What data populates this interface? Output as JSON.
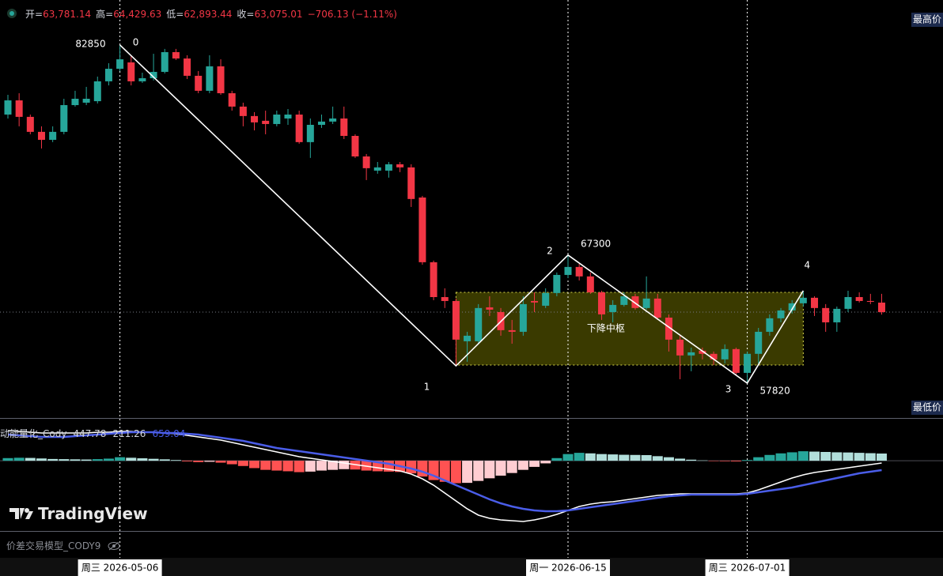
{
  "header": {
    "ohlc": [
      {
        "key": "开=",
        "value": "63,781.14"
      },
      {
        "key": "高=",
        "value": "64,429.63"
      },
      {
        "key": "低=",
        "value": "62,893.44"
      },
      {
        "key": "收=",
        "value": "63,075.01"
      }
    ],
    "change": "−706.13 (−1.11%)"
  },
  "chart_data": [
    {
      "type": "candlestick",
      "ylim": [
        55300,
        86180
      ],
      "up_color": "#26a69a",
      "down_color": "#f23645",
      "ohlc": [
        [
          77700,
          79160,
          77410,
          78750
        ],
        [
          78750,
          79280,
          76830,
          77530
        ],
        [
          77530,
          77700,
          76240,
          76420
        ],
        [
          76420,
          76830,
          75190,
          75830
        ],
        [
          75830,
          76830,
          75660,
          76420
        ],
        [
          76420,
          78870,
          76240,
          78400
        ],
        [
          78400,
          79460,
          78290,
          78870
        ],
        [
          78580,
          79750,
          78400,
          78870
        ],
        [
          78690,
          80510,
          78520,
          80160
        ],
        [
          80160,
          81500,
          79860,
          81090
        ],
        [
          81090,
          82850,
          80920,
          81790
        ],
        [
          81560,
          82090,
          79860,
          80160
        ],
        [
          80160,
          80800,
          80040,
          80390
        ],
        [
          80390,
          82200,
          80220,
          80860
        ],
        [
          80860,
          82560,
          80740,
          82320
        ],
        [
          82320,
          82560,
          81740,
          81850
        ],
        [
          81850,
          82090,
          80330,
          80570
        ],
        [
          80570,
          80920,
          79280,
          79460
        ],
        [
          79460,
          82090,
          79280,
          81270
        ],
        [
          81270,
          81790,
          79160,
          79280
        ],
        [
          79280,
          79460,
          77990,
          78290
        ],
        [
          78290,
          78580,
          76830,
          77590
        ],
        [
          77590,
          77880,
          76530,
          77120
        ],
        [
          77240,
          77990,
          76240,
          77000
        ],
        [
          77000,
          77990,
          76830,
          77700
        ],
        [
          77410,
          78110,
          76940,
          77700
        ],
        [
          77700,
          77990,
          75540,
          75660
        ],
        [
          75660,
          77410,
          74490,
          76940
        ],
        [
          76940,
          77700,
          76710,
          77180
        ],
        [
          77180,
          78290,
          77000,
          77410
        ],
        [
          77410,
          78290,
          75890,
          76120
        ],
        [
          76120,
          76240,
          74490,
          74600
        ],
        [
          74600,
          74780,
          72850,
          73730
        ],
        [
          73550,
          74190,
          73320,
          73790
        ],
        [
          73550,
          74190,
          73030,
          74020
        ],
        [
          74020,
          74190,
          73440,
          73790
        ],
        [
          73790,
          74020,
          70860,
          71450
        ],
        [
          71560,
          71680,
          66590,
          66770
        ],
        [
          66770,
          66890,
          63960,
          64190
        ],
        [
          64190,
          64840,
          63380,
          63900
        ],
        [
          63900,
          64080,
          59100,
          61040
        ],
        [
          60920,
          61620,
          59400,
          61330
        ],
        [
          60920,
          63670,
          60690,
          63380
        ],
        [
          63430,
          64250,
          62790,
          63260
        ],
        [
          63080,
          63380,
          61330,
          61740
        ],
        [
          61740,
          62500,
          60740,
          61620
        ],
        [
          61620,
          64250,
          61330,
          63670
        ],
        [
          63900,
          64540,
          63080,
          63790
        ],
        [
          63550,
          64840,
          63380,
          64490
        ],
        [
          64490,
          66010,
          64250,
          65830
        ],
        [
          65830,
          67300,
          65600,
          66420
        ],
        [
          66420,
          66650,
          65420,
          65720
        ],
        [
          65720,
          66010,
          64430,
          64540
        ],
        [
          64540,
          64660,
          62500,
          62910
        ],
        [
          63080,
          63960,
          62320,
          63610
        ],
        [
          63610,
          64540,
          63490,
          64250
        ],
        [
          64250,
          64430,
          63260,
          63380
        ],
        [
          63380,
          65720,
          63260,
          64080
        ],
        [
          64080,
          64430,
          62500,
          62670
        ],
        [
          62670,
          62910,
          60160,
          61040
        ],
        [
          61040,
          61330,
          58110,
          59870
        ],
        [
          59870,
          60450,
          58700,
          60100
        ],
        [
          60220,
          60450,
          59580,
          59990
        ],
        [
          59990,
          60160,
          59160,
          59580
        ],
        [
          59580,
          60690,
          59280,
          60340
        ],
        [
          60340,
          60450,
          58400,
          58580
        ],
        [
          58580,
          60160,
          57820,
          59990
        ],
        [
          59990,
          61910,
          59280,
          61620
        ],
        [
          61620,
          62910,
          61330,
          62620
        ],
        [
          62620,
          63380,
          62320,
          63200
        ],
        [
          63200,
          63960,
          62970,
          63730
        ],
        [
          63730,
          64660,
          63490,
          64140
        ],
        [
          64140,
          64250,
          62790,
          63380
        ],
        [
          63380,
          63670,
          61620,
          62320
        ],
        [
          62320,
          63490,
          61620,
          63320
        ],
        [
          63320,
          64660,
          63080,
          64190
        ],
        [
          64190,
          64540,
          63790,
          63900
        ],
        [
          63900,
          64430,
          63670,
          63840
        ],
        [
          63781.14,
          64429.63,
          62893.44,
          63075.01
        ]
      ],
      "zigzag": {
        "labels": [
          "0",
          "1",
          "2",
          "3",
          "4"
        ],
        "index": [
          10,
          40,
          50,
          66,
          71
        ],
        "values": [
          82850,
          59100,
          67300,
          57820,
          64660
        ],
        "show_value": [
          true,
          false,
          true,
          true,
          false
        ]
      },
      "pivot_zone": {
        "label": "下降中枢",
        "start": 40,
        "end": 71,
        "high": 64540,
        "low": 59160
      },
      "scale_labels": {
        "top": "最高价",
        "bottom": "最低价"
      },
      "date_labels": [
        {
          "index": 10,
          "label": "周三 2026-05-06"
        },
        {
          "index": 50,
          "label": "周一 2026-06-15"
        },
        {
          "index": 66,
          "label": "周三 2026-07-01"
        }
      ]
    },
    {
      "type": "oscillator",
      "title": "动能量化_Cody",
      "readouts": [
        "447.78",
        "211.26",
        "659.04"
      ],
      "ylim": [
        -4000,
        2300
      ],
      "hist_colors": [
        "#26a69a",
        "#b2dfdb",
        "#ff5252",
        "#ffcdd2"
      ],
      "histogram": [
        150,
        170,
        160,
        130,
        100,
        90,
        80,
        70,
        90,
        120,
        200,
        170,
        140,
        110,
        80,
        40,
        -40,
        -80,
        -60,
        -110,
        -200,
        -300,
        -420,
        -520,
        -560,
        -600,
        -650,
        -620,
        -560,
        -520,
        -480,
        -500,
        -560,
        -600,
        -620,
        -640,
        -720,
        -900,
        -1100,
        -1200,
        -1280,
        -1260,
        -1150,
        -1000,
        -850,
        -700,
        -520,
        -350,
        -150,
        150,
        380,
        450,
        420,
        380,
        360,
        340,
        330,
        320,
        260,
        200,
        120,
        60,
        20,
        -20,
        -30,
        -40,
        40,
        200,
        330,
        420,
        480,
        540,
        520,
        500,
        480,
        470,
        450,
        430,
        410
      ],
      "lines": [
        {
          "color": "#ffffff",
          "values": [
            1715,
            1670,
            1625,
            1580,
            1580,
            1580,
            1580,
            1580,
            1625,
            1625,
            1670,
            1670,
            1625,
            1625,
            1580,
            1535,
            1445,
            1355,
            1265,
            1175,
            1040,
            905,
            770,
            635,
            500,
            365,
            230,
            140,
            50,
            -40,
            -130,
            -220,
            -310,
            -400,
            -490,
            -580,
            -760,
            -1030,
            -1390,
            -1840,
            -2290,
            -2740,
            -3100,
            -3280,
            -3370,
            -3415,
            -3460,
            -3370,
            -3235,
            -3055,
            -2830,
            -2605,
            -2470,
            -2380,
            -2335,
            -2245,
            -2155,
            -2065,
            -1975,
            -1930,
            -1885,
            -1885,
            -1885,
            -1885,
            -1885,
            -1885,
            -1840,
            -1660,
            -1435,
            -1210,
            -985,
            -805,
            -670,
            -580,
            -490,
            -400,
            -310,
            -220,
            -130
          ]
        },
        {
          "color": "#4a5de8",
          "values": [
            1490,
            1445,
            1400,
            1355,
            1355,
            1355,
            1400,
            1445,
            1490,
            1535,
            1580,
            1625,
            1625,
            1625,
            1580,
            1580,
            1535,
            1490,
            1400,
            1310,
            1220,
            1130,
            995,
            860,
            725,
            635,
            545,
            455,
            365,
            275,
            185,
            95,
            5,
            -85,
            -175,
            -310,
            -445,
            -625,
            -850,
            -1120,
            -1390,
            -1660,
            -1930,
            -2200,
            -2425,
            -2605,
            -2740,
            -2830,
            -2875,
            -2875,
            -2830,
            -2740,
            -2650,
            -2560,
            -2470,
            -2380,
            -2290,
            -2200,
            -2110,
            -2020,
            -1975,
            -1930,
            -1930,
            -1930,
            -1930,
            -1930,
            -1885,
            -1795,
            -1705,
            -1615,
            -1525,
            -1390,
            -1255,
            -1120,
            -985,
            -850,
            -715,
            -625,
            -535
          ]
        }
      ]
    }
  ],
  "footer": {
    "indicator": "价差交易模型_CODY9",
    "brand": "TradingView"
  }
}
